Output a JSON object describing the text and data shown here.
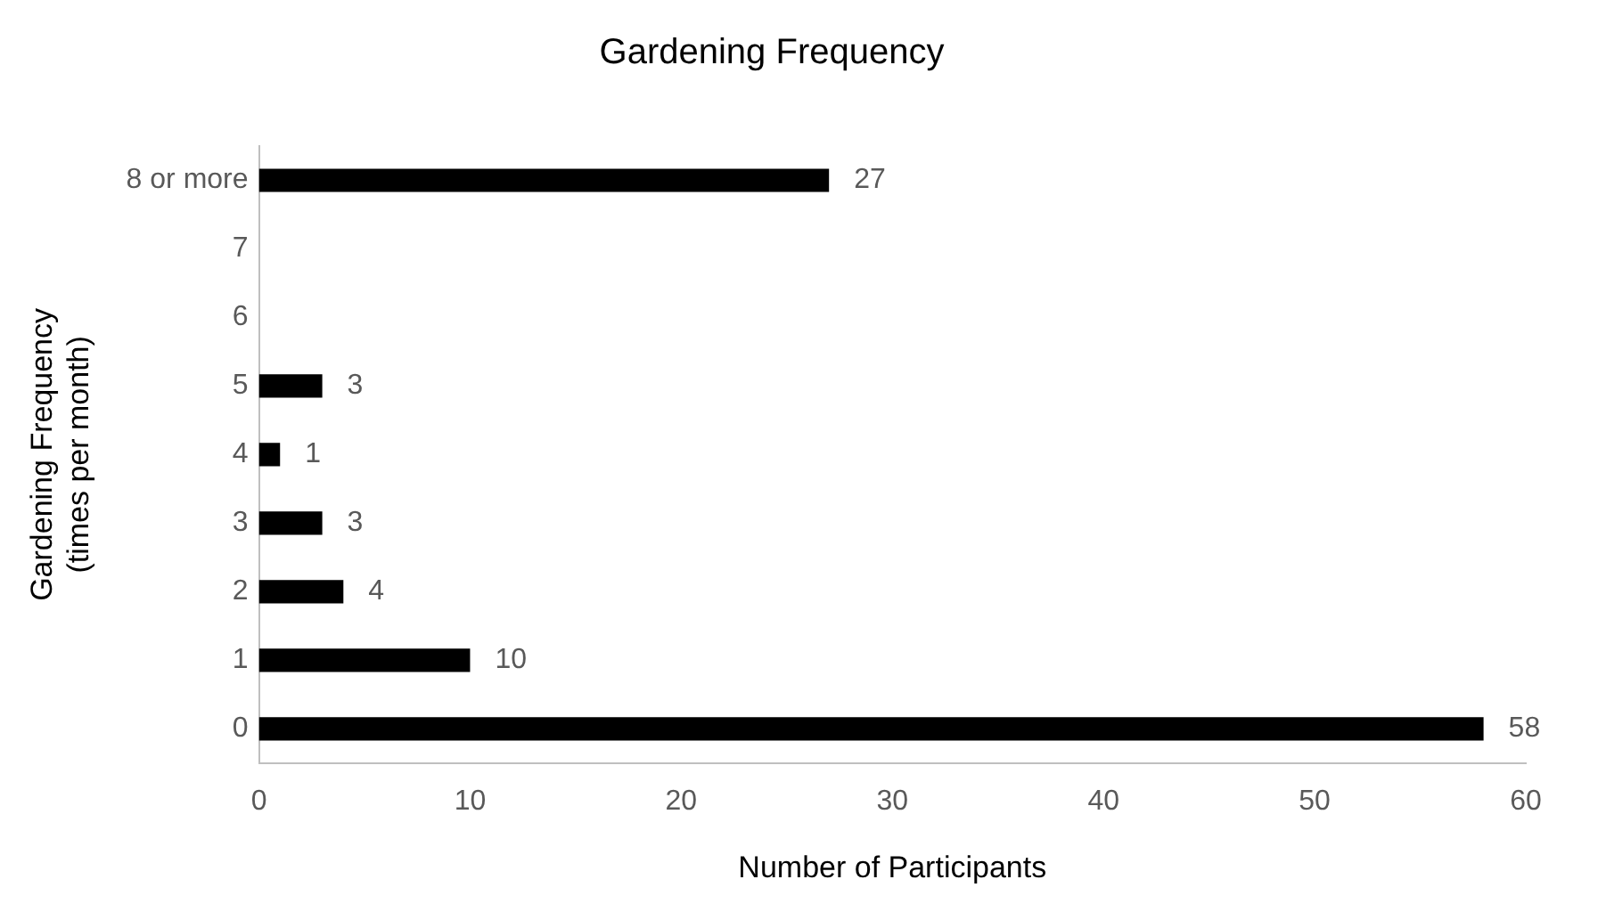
{
  "chart_data": {
    "type": "bar",
    "orientation": "horizontal",
    "title": "Gardening Frequency",
    "xlabel": "Number of Participants",
    "ylabel": "Gardening Frequency\n(times per month)",
    "categories": [
      "8 or more",
      "7",
      "6",
      "5",
      "4",
      "3",
      "2",
      "1",
      "0"
    ],
    "values": [
      27,
      null,
      null,
      3,
      1,
      3,
      4,
      10,
      58
    ],
    "color": "#000000",
    "xlim": [
      0,
      60
    ],
    "xticks": [
      0,
      10,
      20,
      30,
      40,
      50,
      60
    ],
    "grid": false,
    "legend": false,
    "data_labels": true
  }
}
